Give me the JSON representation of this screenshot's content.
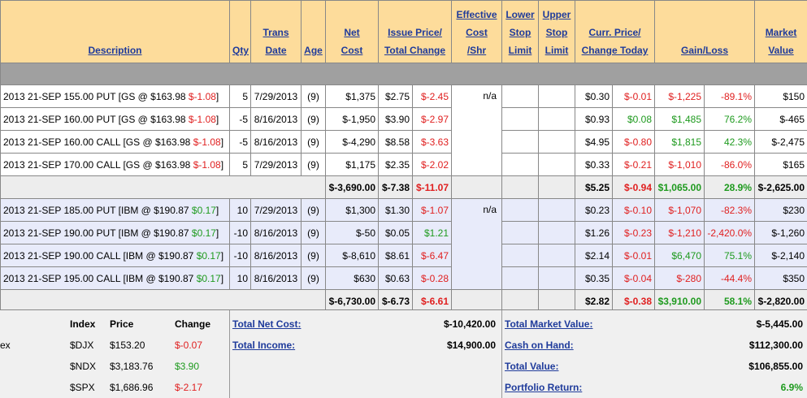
{
  "headers": [
    [
      "Description"
    ],
    [
      "Qty"
    ],
    [
      "Trans",
      "Date"
    ],
    [
      "Age"
    ],
    [
      "Net",
      "Cost"
    ],
    [
      "Issue Price/",
      "Total Change"
    ],
    [
      "Effective",
      "Cost",
      "/Shr"
    ],
    [
      "Lower",
      "Stop",
      "Limit"
    ],
    [
      "Upper",
      "Stop",
      "Limit"
    ],
    [
      "Curr. Price/",
      "Change Today"
    ],
    [
      "Gain/Loss"
    ],
    [
      "Market",
      "Value"
    ]
  ],
  "groups": [
    {
      "effective_cost": "n/a",
      "rows": [
        {
          "description": [
            "2013 21-SEP 155.00 PUT [GS @ $163.98 ",
            "$-1.08",
            "]"
          ],
          "qty": "5",
          "trans_date": "7/29/2013",
          "age": "(9)",
          "net_cost": "$1,375",
          "issue_price": "$2.75",
          "total_change": "$-2.45",
          "curr_price": "$0.30",
          "change_today": "$-0.01",
          "gain_loss": "$-1,225",
          "gain_pct": "-89.1%",
          "market_value": "$150"
        },
        {
          "description": [
            "2013 21-SEP 160.00 PUT [GS @ $163.98 ",
            "$-1.08",
            "]"
          ],
          "qty": "-5",
          "trans_date": "8/16/2013",
          "age": "(9)",
          "net_cost": "$-1,950",
          "issue_price": "$3.90",
          "total_change": "$-2.97",
          "curr_price": "$0.93",
          "change_today": "$0.08",
          "gain_loss": "$1,485",
          "gain_pct": "76.2%",
          "market_value": "$-465"
        },
        {
          "description": [
            "2013 21-SEP 160.00 CALL [GS @ $163.98 ",
            "$-1.08",
            "]"
          ],
          "qty": "-5",
          "trans_date": "8/16/2013",
          "age": "(9)",
          "net_cost": "$-4,290",
          "issue_price": "$8.58",
          "total_change": "$-3.63",
          "curr_price": "$4.95",
          "change_today": "$-0.80",
          "gain_loss": "$1,815",
          "gain_pct": "42.3%",
          "market_value": "$-2,475"
        },
        {
          "description": [
            "2013 21-SEP 170.00 CALL [GS @ $163.98 ",
            "$-1.08",
            "]"
          ],
          "qty": "5",
          "trans_date": "7/29/2013",
          "age": "(9)",
          "net_cost": "$1,175",
          "issue_price": "$2.35",
          "total_change": "$-2.02",
          "curr_price": "$0.33",
          "change_today": "$-0.21",
          "gain_loss": "$-1,010",
          "gain_pct": "-86.0%",
          "market_value": "$165"
        }
      ],
      "subtotal": {
        "net_cost": "$-3,690.00",
        "issue_price": "$-7.38",
        "total_change": "$-11.07",
        "curr_price": "$5.25",
        "change_today": "$-0.94",
        "gain_loss": "$1,065.00",
        "gain_pct": "28.9%",
        "market_value": "$-2,625.00"
      }
    },
    {
      "effective_cost": "n/a",
      "rows": [
        {
          "description": [
            "2013 21-SEP 185.00 PUT [IBM @ $190.87 ",
            "$0.17",
            "]"
          ],
          "qty": "10",
          "trans_date": "7/29/2013",
          "age": "(9)",
          "net_cost": "$1,300",
          "issue_price": "$1.30",
          "total_change": "$-1.07",
          "curr_price": "$0.23",
          "change_today": "$-0.10",
          "gain_loss": "$-1,070",
          "gain_pct": "-82.3%",
          "market_value": "$230"
        },
        {
          "description": [
            "2013 21-SEP 190.00 PUT [IBM @ $190.87 ",
            "$0.17",
            "]"
          ],
          "qty": "-10",
          "trans_date": "8/16/2013",
          "age": "(9)",
          "net_cost": "$-50",
          "issue_price": "$0.05",
          "total_change": "$1.21",
          "curr_price": "$1.26",
          "change_today": "$-0.23",
          "gain_loss": "$-1,210",
          "gain_pct": "-2,420.0%",
          "market_value": "$-1,260"
        },
        {
          "description": [
            "2013 21-SEP 190.00 CALL [IBM @ $190.87 ",
            "$0.17",
            "]"
          ],
          "qty": "-10",
          "trans_date": "8/16/2013",
          "age": "(9)",
          "net_cost": "$-8,610",
          "issue_price": "$8.61",
          "total_change": "$-6.47",
          "curr_price": "$2.14",
          "change_today": "$-0.01",
          "gain_loss": "$6,470",
          "gain_pct": "75.1%",
          "market_value": "$-2,140"
        },
        {
          "description": [
            "2013 21-SEP 195.00 CALL [IBM @ $190.87 ",
            "$0.17",
            "]"
          ],
          "qty": "10",
          "trans_date": "8/16/2013",
          "age": "(9)",
          "net_cost": "$630",
          "issue_price": "$0.63",
          "total_change": "$-0.28",
          "curr_price": "$0.35",
          "change_today": "$-0.04",
          "gain_loss": "$-280",
          "gain_pct": "-44.4%",
          "market_value": "$350"
        }
      ],
      "subtotal": {
        "net_cost": "$-6,730.00",
        "issue_price": "$-6.73",
        "total_change": "$-6.61",
        "curr_price": "$2.82",
        "change_today": "$-0.38",
        "gain_loss": "$3,910.00",
        "gain_pct": "58.1%",
        "market_value": "$-2,820.00"
      }
    }
  ],
  "indices": {
    "cut_label": "ex",
    "headers": [
      "Index",
      "Price",
      "Change"
    ],
    "rows": [
      [
        "$DJX",
        "$153.20",
        "$-0.07"
      ],
      [
        "$NDX",
        "$3,183.76",
        "$3.90"
      ],
      [
        "$SPX",
        "$1,686.96",
        "$-2.17"
      ]
    ]
  },
  "totals_middle": [
    {
      "label": "Total Net Cost:",
      "value": "$-10,420.00"
    },
    {
      "label": "Total Income:",
      "value": "$14,900.00"
    }
  ],
  "totals_right": [
    {
      "label": "Total Market Value:",
      "value": "$-5,445.00"
    },
    {
      "label": "Cash on Hand:",
      "value": "$112,300.00"
    },
    {
      "label": "Total Value:",
      "value": "$106,855.00"
    },
    {
      "label": "Portfolio Return:",
      "value": "6.9%"
    }
  ]
}
